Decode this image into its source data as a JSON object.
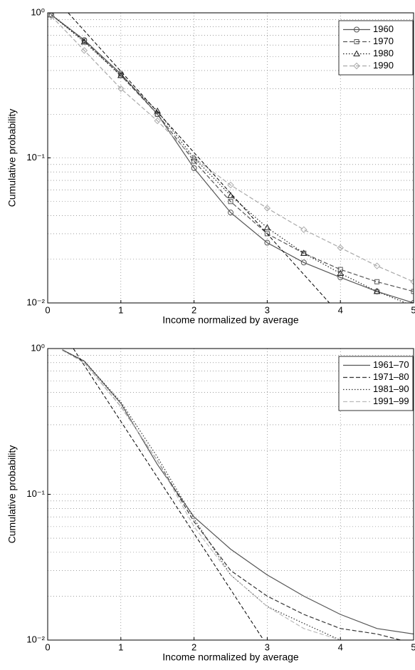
{
  "chart_data": [
    {
      "type": "line",
      "xlabel": "Income normalized by average",
      "ylabel": "Cumulative probability",
      "xlim": [
        0,
        5
      ],
      "xticks": [
        0,
        1,
        2,
        3,
        4,
        5
      ],
      "ylim": [
        0.01,
        1
      ],
      "log_y": true,
      "yticks": [
        {
          "value": 0.01,
          "label": "10⁻²"
        },
        {
          "value": 0.1,
          "label": "10⁻¹"
        },
        {
          "value": 1,
          "label": "10⁰"
        }
      ],
      "yminorticks": [
        0.02,
        0.03,
        0.04,
        0.05,
        0.06,
        0.07,
        0.08,
        0.09,
        0.2,
        0.3,
        0.4,
        0.5,
        0.6,
        0.7,
        0.8,
        0.9
      ],
      "grid": true,
      "legend": "upper right",
      "x": [
        0.05,
        0.5,
        1,
        1.5,
        2,
        2.5,
        3,
        3.5,
        4,
        4.5,
        5
      ],
      "series": [
        {
          "name": "1960",
          "color": "#555555",
          "dash": "solid",
          "marker": "circle",
          "values": [
            0.97,
            0.65,
            0.38,
            0.2,
            0.085,
            0.042,
            0.026,
            0.019,
            0.015,
            0.012,
            0.01
          ]
        },
        {
          "name": "1970",
          "color": "#555555",
          "dash": "dashed",
          "marker": "square",
          "values": [
            0.97,
            0.64,
            0.37,
            0.2,
            0.095,
            0.05,
            0.03,
            0.022,
            0.017,
            0.014,
            0.012
          ]
        },
        {
          "name": "1980",
          "color": "#222222",
          "dash": "dotted",
          "marker": "triangle",
          "values": [
            0.97,
            0.63,
            0.37,
            0.21,
            0.1,
            0.055,
            0.033,
            0.022,
            0.016,
            0.012,
            0.0095
          ]
        },
        {
          "name": "1990",
          "color": "#aaaaaa",
          "dash": "dashed",
          "marker": "diamond",
          "values": [
            0.95,
            0.55,
            0.3,
            0.18,
            0.1,
            0.065,
            0.045,
            0.032,
            0.024,
            0.018,
            0.014
          ]
        }
      ],
      "reference_line": {
        "color": "#000000",
        "x": [
          0.28,
          3.85
        ],
        "values": [
          1,
          0.01
        ]
      }
    },
    {
      "type": "line",
      "xlabel": "Income normalized by average",
      "ylabel": "Cumulative probability",
      "xlim": [
        0,
        5
      ],
      "xticks": [
        0,
        1,
        2,
        3,
        4,
        5
      ],
      "ylim": [
        0.01,
        1
      ],
      "log_y": true,
      "yticks": [
        {
          "value": 0.01,
          "label": "10⁻²"
        },
        {
          "value": 0.1,
          "label": "10⁻¹"
        },
        {
          "value": 1,
          "label": "10⁰"
        }
      ],
      "yminorticks": [
        0.02,
        0.03,
        0.04,
        0.05,
        0.06,
        0.07,
        0.08,
        0.09,
        0.2,
        0.3,
        0.4,
        0.5,
        0.6,
        0.7,
        0.8,
        0.9
      ],
      "grid": true,
      "legend": "upper right",
      "x": [
        0.2,
        0.5,
        1,
        1.5,
        2,
        2.5,
        3,
        3.5,
        4,
        4.5,
        5
      ],
      "series": [
        {
          "name": "1961–70",
          "color": "#555555",
          "dash": "solid",
          "values": [
            0.98,
            0.82,
            0.42,
            0.16,
            0.07,
            0.042,
            0.028,
            0.02,
            0.015,
            0.012,
            0.011
          ]
        },
        {
          "name": "1971–80",
          "color": "#333333",
          "dash": "dashed",
          "values": [
            0.98,
            0.8,
            0.4,
            0.17,
            0.065,
            0.03,
            0.02,
            0.015,
            0.012,
            0.011,
            0.0095
          ]
        },
        {
          "name": "1981–90",
          "color": "#333333",
          "dash": "dotted",
          "values": [
            0.98,
            0.82,
            0.43,
            0.18,
            0.068,
            0.028,
            0.017,
            0.013,
            0.01,
            0.009,
            0.008
          ]
        },
        {
          "name": "1991–99",
          "color": "#bbbbbb",
          "dash": "dashed",
          "values": [
            0.97,
            0.8,
            0.4,
            0.17,
            0.06,
            0.028,
            0.017,
            0.012,
            0.01,
            0.009,
            0.008
          ]
        }
      ],
      "reference_line": {
        "color": "#000000",
        "x": [
          0.35,
          2.95
        ],
        "values": [
          1,
          0.01
        ]
      }
    }
  ]
}
